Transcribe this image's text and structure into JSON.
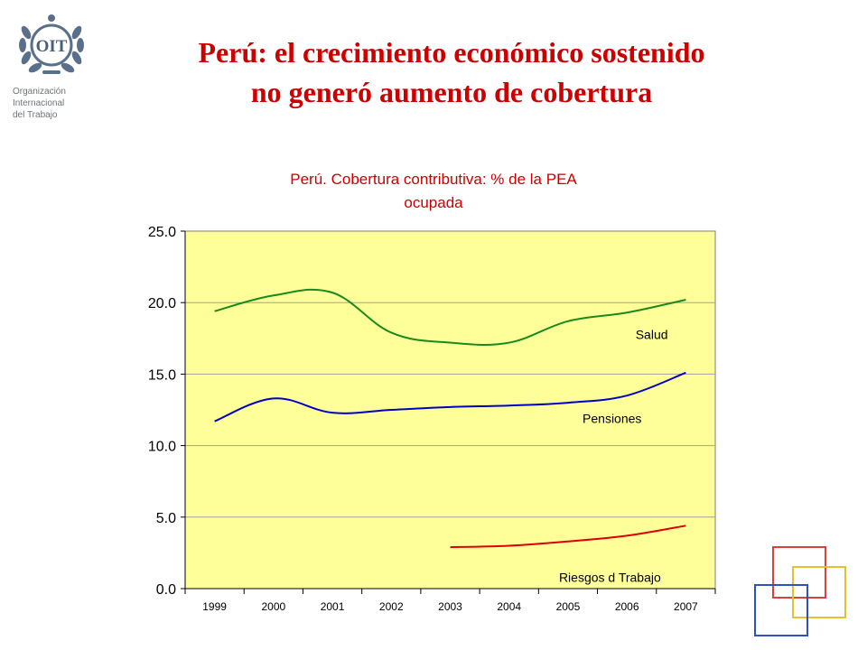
{
  "logo": {
    "emblem_text": "OIT",
    "lines": [
      "Organización",
      "Internacional",
      "del Trabajo"
    ]
  },
  "slide_title": {
    "line1": "Perú: el crecimiento económico sostenido",
    "line2": "no generó aumento de cobertura"
  },
  "colors": {
    "title_red": "#cc0000",
    "plot_bg": "#ffff99",
    "salud": "#1a8a1a",
    "pensiones": "#0000cc",
    "riesgos": "#dd0000",
    "deco_red": "#d94040",
    "deco_yellow": "#e6c030",
    "deco_blue": "#3050c0"
  },
  "chart_data": {
    "type": "line",
    "title_lines": [
      "Perú.  Cobertura contributiva: % de la PEA",
      "ocupada"
    ],
    "xlabel": "",
    "ylabel": "",
    "categories": [
      "1999",
      "2000",
      "2001",
      "2002",
      "2003",
      "2004",
      "2005",
      "2006",
      "2007"
    ],
    "ylim": [
      0,
      25
    ],
    "yticks": [
      "0.0",
      "5.0",
      "10.0",
      "15.0",
      "20.0",
      "25.0"
    ],
    "grid": "horizontal",
    "legend": "inline labels",
    "series": [
      {
        "name": "Salud",
        "color": "#1a8a1a",
        "values": [
          19.4,
          20.5,
          20.7,
          17.9,
          17.2,
          17.2,
          18.7,
          19.3,
          20.2
        ]
      },
      {
        "name": "Pensiones",
        "color": "#0000cc",
        "values": [
          11.7,
          13.3,
          12.3,
          12.5,
          12.7,
          12.8,
          13.0,
          13.5,
          15.1
        ]
      },
      {
        "name": "Riesgos d Trabajo",
        "color": "#dd0000",
        "values": [
          null,
          null,
          null,
          null,
          2.9,
          3.0,
          3.3,
          3.7,
          4.4
        ]
      }
    ]
  }
}
